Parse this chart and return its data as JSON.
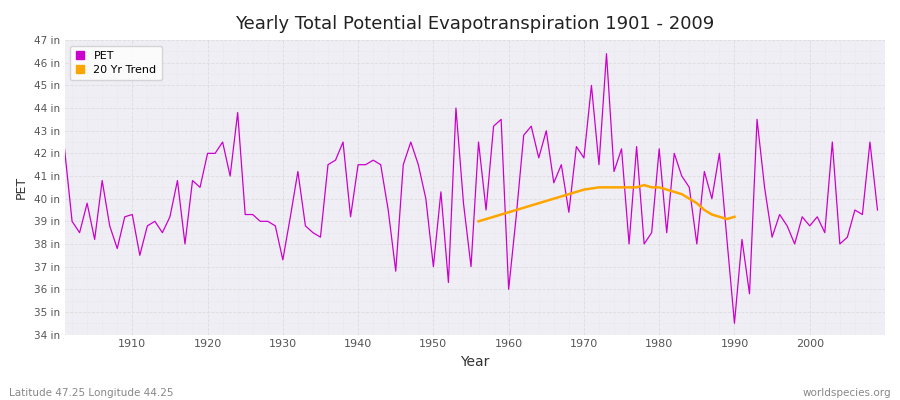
{
  "title": "Yearly Total Potential Evapotranspiration 1901 - 2009",
  "ylabel": "PET",
  "xlabel": "Year",
  "footer_left": "Latitude 47.25 Longitude 44.25",
  "footer_right": "worldspecies.org",
  "pet_color": "#CC00CC",
  "trend_color": "#FFA500",
  "outer_bg": "#FFFFFF",
  "plot_bg": "#F0EEF5",
  "grid_color": "#DDDDDD",
  "ylim_min": 34,
  "ylim_max": 47,
  "xlim_min": 1901,
  "xlim_max": 2010,
  "years": [
    1901,
    1902,
    1903,
    1904,
    1905,
    1906,
    1907,
    1908,
    1909,
    1910,
    1911,
    1912,
    1913,
    1914,
    1915,
    1916,
    1917,
    1918,
    1919,
    1920,
    1921,
    1922,
    1923,
    1924,
    1925,
    1926,
    1927,
    1928,
    1929,
    1930,
    1931,
    1932,
    1933,
    1934,
    1935,
    1936,
    1937,
    1938,
    1939,
    1940,
    1941,
    1942,
    1943,
    1944,
    1945,
    1946,
    1947,
    1948,
    1949,
    1950,
    1951,
    1952,
    1953,
    1954,
    1955,
    1956,
    1957,
    1958,
    1959,
    1960,
    1961,
    1962,
    1963,
    1964,
    1965,
    1966,
    1967,
    1968,
    1969,
    1970,
    1971,
    1972,
    1973,
    1974,
    1975,
    1976,
    1977,
    1978,
    1979,
    1980,
    1981,
    1982,
    1983,
    1984,
    1985,
    1986,
    1987,
    1988,
    1989,
    1990,
    1991,
    1992,
    1993,
    1994,
    1995,
    1996,
    1997,
    1998,
    1999,
    2000,
    2001,
    2002,
    2003,
    2004,
    2005,
    2006,
    2007,
    2008,
    2009
  ],
  "pet_values": [
    42.2,
    39.0,
    38.5,
    39.8,
    38.2,
    40.8,
    38.8,
    37.8,
    39.2,
    39.3,
    37.5,
    38.8,
    39.0,
    38.5,
    39.2,
    40.8,
    38.0,
    40.8,
    40.5,
    42.0,
    42.0,
    42.5,
    41.0,
    43.8,
    39.3,
    39.3,
    39.0,
    39.0,
    38.8,
    37.3,
    39.2,
    41.2,
    38.8,
    38.5,
    38.3,
    41.5,
    41.7,
    42.5,
    39.2,
    41.5,
    41.5,
    41.7,
    41.5,
    39.5,
    36.8,
    41.5,
    42.5,
    41.5,
    40.0,
    37.0,
    40.3,
    36.3,
    44.0,
    39.8,
    37.0,
    42.5,
    39.5,
    43.2,
    43.5,
    36.0,
    39.2,
    42.8,
    43.2,
    41.8,
    43.0,
    40.7,
    41.5,
    39.4,
    42.3,
    41.8,
    45.0,
    41.5,
    46.4,
    41.2,
    42.2,
    38.0,
    42.3,
    38.0,
    38.5,
    42.2,
    38.5,
    42.0,
    41.0,
    40.5,
    38.0,
    41.2,
    40.0,
    42.0,
    38.2,
    34.5,
    38.2,
    35.8,
    43.5,
    40.5,
    38.3,
    39.3,
    38.8,
    38.0,
    39.2,
    38.8,
    39.2,
    38.5,
    42.5,
    38.0,
    38.3,
    39.5,
    39.3,
    42.5,
    39.5
  ],
  "trend_years": [
    1956,
    1957,
    1958,
    1959,
    1960,
    1961,
    1962,
    1963,
    1964,
    1965,
    1966,
    1967,
    1968,
    1969,
    1970,
    1971,
    1972,
    1973,
    1974,
    1975,
    1976,
    1977,
    1978,
    1979,
    1980,
    1981,
    1982,
    1983,
    1984,
    1985,
    1986,
    1987,
    1988,
    1989,
    1990
  ],
  "trend_values": [
    39.0,
    39.1,
    39.2,
    39.3,
    39.4,
    39.5,
    39.6,
    39.7,
    39.8,
    39.9,
    40.0,
    40.1,
    40.2,
    40.3,
    40.4,
    40.45,
    40.5,
    40.5,
    40.5,
    40.5,
    40.5,
    40.5,
    40.6,
    40.5,
    40.5,
    40.4,
    40.3,
    40.2,
    40.0,
    39.8,
    39.5,
    39.3,
    39.2,
    39.1,
    39.2
  ]
}
